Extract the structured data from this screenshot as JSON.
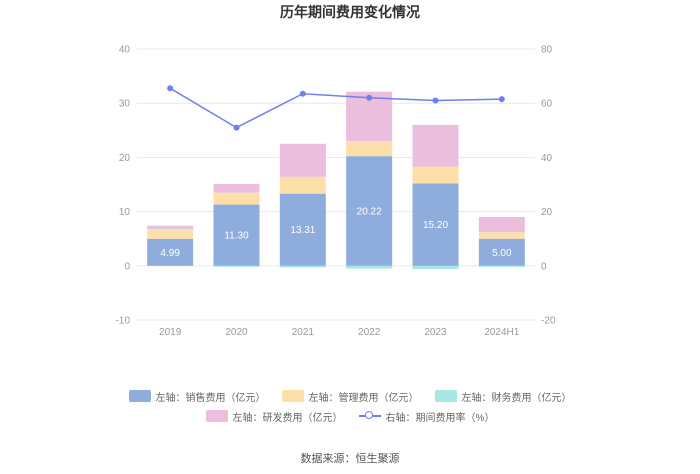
{
  "chart_data": {
    "type": "bar",
    "title": "历年期间费用变化情况",
    "categories": [
      "2019",
      "2020",
      "2021",
      "2022",
      "2023",
      "2024H1"
    ],
    "left_axis": {
      "min": -10,
      "max": 40,
      "ticks": [
        -10,
        0,
        10,
        20,
        30,
        40
      ]
    },
    "right_axis": {
      "min": -20,
      "max": 80,
      "ticks": [
        -20,
        0,
        20,
        40,
        60,
        80
      ]
    },
    "series": [
      {
        "name": "左轴：销售费用（亿元）",
        "type": "bar",
        "axis": "left",
        "color": "#8eacdc",
        "values": [
          4.99,
          11.3,
          13.31,
          20.22,
          15.2,
          5.0
        ],
        "labels": [
          "4.99",
          "11.30",
          "13.31",
          "20.22",
          "15.20",
          "5.00"
        ]
      },
      {
        "name": "左轴：管理费用（亿元）",
        "type": "bar",
        "axis": "left",
        "color": "#fde0a9",
        "values": [
          1.8,
          2.2,
          3.1,
          2.8,
          3.1,
          1.2
        ]
      },
      {
        "name": "左轴：财务费用（亿元）",
        "type": "bar",
        "axis": "left",
        "color": "#a8e6e6",
        "values": [
          0.1,
          -0.2,
          -0.3,
          -0.5,
          -0.6,
          -0.2
        ]
      },
      {
        "name": "左轴：研发费用（亿元）",
        "type": "bar",
        "axis": "left",
        "color": "#ebbedd",
        "values": [
          0.5,
          1.6,
          6.1,
          9.1,
          7.7,
          2.8
        ]
      },
      {
        "name": "右轴：期间费用率（%）",
        "type": "line",
        "axis": "right",
        "color": "#6f7ff0",
        "values": [
          65.5,
          51.0,
          63.5,
          62.0,
          61.0,
          61.5
        ]
      }
    ],
    "legend_position": "bottom"
  },
  "source": "数据来源：恒生聚源"
}
